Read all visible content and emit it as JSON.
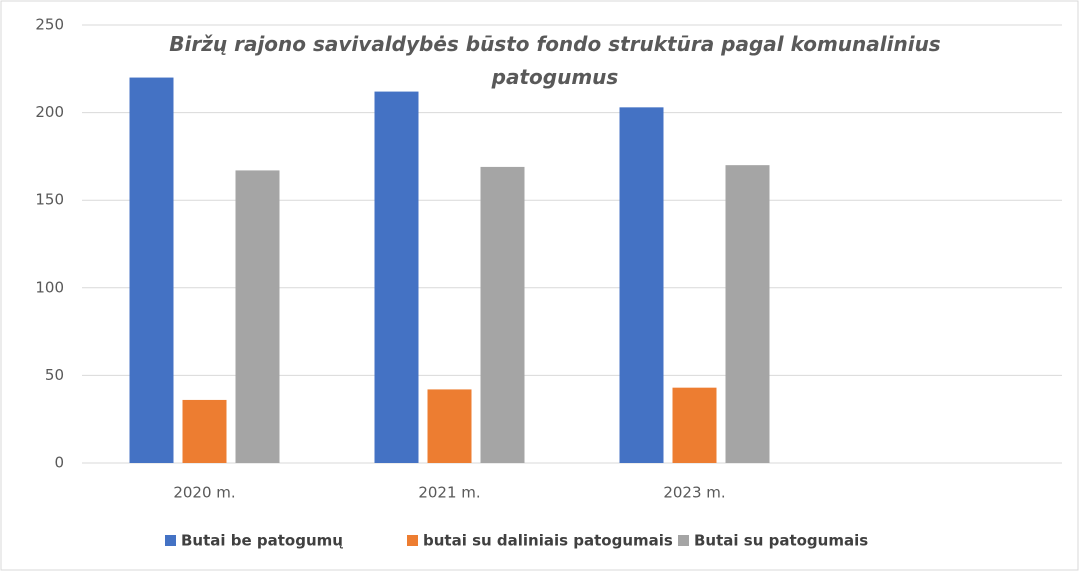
{
  "chart_data": {
    "type": "bar",
    "title": "Biržų rajono savivaldybės būsto fondo struktūra pagal komunalinius patogumus",
    "categories": [
      "2020 m.",
      "2021 m.",
      "2023 m.",
      null
    ],
    "series": [
      {
        "name": "Butai be patogumų",
        "color": "#4472c4",
        "values": [
          220,
          212,
          203,
          null
        ]
      },
      {
        "name": "butai su daliniais patogumais",
        "color": "#ed7d31",
        "values": [
          36,
          42,
          43,
          null
        ]
      },
      {
        "name": "Butai su patogumais",
        "color": "#a5a5a5",
        "values": [
          167,
          169,
          170,
          null
        ]
      }
    ],
    "ylim": [
      0,
      250
    ],
    "yticks": [
      0,
      50,
      100,
      150,
      200,
      250
    ],
    "grid": true,
    "legend": "bottom"
  }
}
